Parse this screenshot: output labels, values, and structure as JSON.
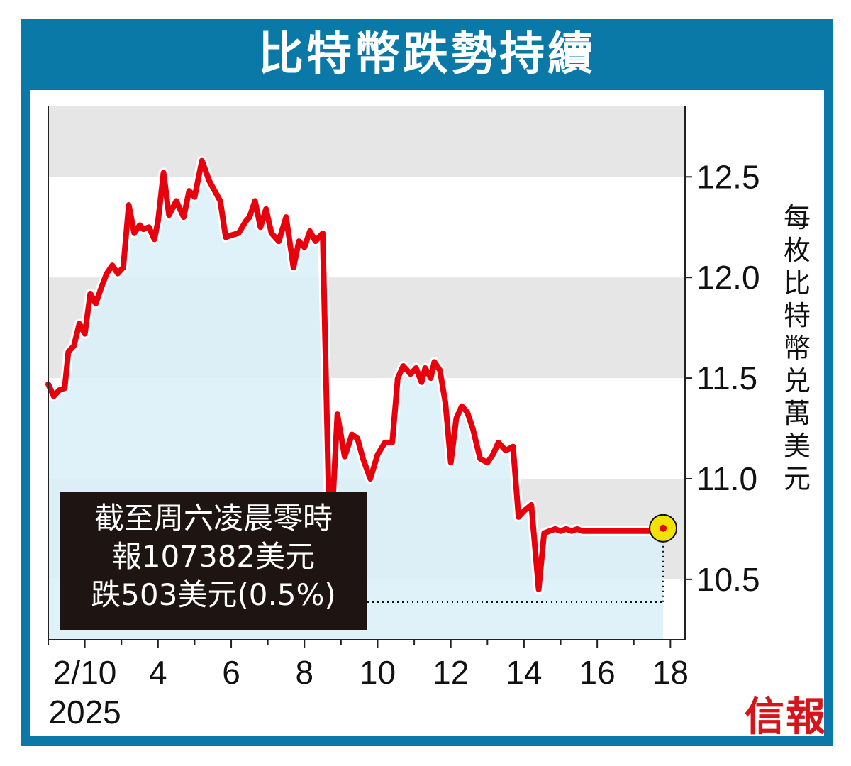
{
  "title": "比特幣跌勢持續",
  "note": {
    "line1": "截至周六凌晨零時",
    "line2": "報107382美元",
    "line3": "跌503美元(0.5%)"
  },
  "logo": "信報",
  "colors": {
    "frame": "#0a79a8",
    "line": "#e8000d",
    "area": "#d9eef8",
    "band": "#e6e6e6",
    "marker": "#f2e200"
  },
  "chart_data": {
    "type": "line",
    "title": "比特幣跌勢持續",
    "ylabel": "每枚比特幣兑萬美元",
    "xlabel": "",
    "x_ticks": [
      "2/10",
      "4",
      "6",
      "8",
      "10",
      "12",
      "14",
      "16",
      "18"
    ],
    "x_year_label": "2025",
    "x_tick_values": [
      10,
      12,
      14,
      16,
      18,
      20,
      22,
      24,
      26
    ],
    "y_ticks": [
      "10.5",
      "11.0",
      "11.5",
      "12.0",
      "12.5"
    ],
    "y_tick_values": [
      10.5,
      11.0,
      11.5,
      12.0,
      12.5
    ],
    "xlim": [
      9,
      26.4
    ],
    "ylim": [
      10.2,
      12.85
    ],
    "grid": "horizontal bands",
    "last_value_marker": true,
    "series": [
      {
        "x": [
          9.0,
          9.15,
          9.3,
          9.45,
          9.55,
          9.7,
          9.85,
          10.0,
          10.15,
          10.3,
          10.45,
          10.6,
          10.75,
          10.9,
          11.05,
          11.2,
          11.35,
          11.5,
          11.6,
          11.75,
          11.9,
          12.0,
          12.15,
          12.3,
          12.5,
          12.7,
          12.85,
          13.0,
          13.2,
          13.4,
          13.55,
          13.7,
          13.85,
          14.0,
          14.2,
          14.4,
          14.5,
          14.65,
          14.8,
          14.95,
          15.1,
          15.3,
          15.5,
          15.7,
          15.85,
          16.0,
          16.15,
          16.3,
          16.5,
          16.7,
          16.9,
          17.1,
          17.3,
          17.45,
          17.6,
          17.8,
          18.0,
          18.2,
          18.4,
          18.55,
          18.7,
          18.9,
          19.05,
          19.2,
          19.3,
          19.45,
          19.55,
          19.7,
          19.85,
          20.0,
          20.15,
          20.3,
          20.45,
          20.6,
          20.8,
          21.0,
          21.15,
          21.3,
          21.5,
          21.7,
          21.85,
          22.0,
          22.2,
          22.4,
          22.55,
          22.7,
          22.85,
          23.0,
          23.15,
          23.3,
          23.45,
          23.6,
          23.8,
          24.0,
          24.15,
          24.3,
          24.45,
          24.55,
          24.7,
          24.85,
          25.0,
          25.15,
          25.3,
          25.4,
          25.55,
          25.7,
          25.8
        ],
        "y": [
          11.47,
          11.41,
          11.44,
          11.45,
          11.63,
          11.66,
          11.77,
          11.72,
          11.92,
          11.87,
          11.95,
          12.02,
          12.06,
          12.02,
          12.05,
          12.36,
          12.22,
          12.26,
          12.24,
          12.25,
          12.19,
          12.28,
          12.52,
          12.31,
          12.38,
          12.3,
          12.43,
          12.4,
          12.58,
          12.48,
          12.43,
          12.38,
          12.2,
          12.21,
          12.22,
          12.28,
          12.3,
          12.38,
          12.25,
          12.34,
          12.22,
          12.18,
          12.3,
          12.05,
          12.18,
          12.15,
          12.23,
          12.18,
          12.22,
          10.62,
          11.32,
          11.11,
          11.22,
          11.2,
          11.1,
          11.0,
          11.12,
          11.18,
          11.18,
          11.5,
          11.56,
          11.52,
          11.55,
          11.48,
          11.55,
          11.5,
          11.58,
          11.54,
          11.38,
          11.08,
          11.3,
          11.36,
          11.33,
          11.25,
          11.1,
          11.08,
          11.12,
          11.18,
          11.14,
          11.16,
          10.81,
          10.84,
          10.87,
          10.45,
          10.73,
          10.74,
          10.75,
          10.74,
          10.75,
          10.74,
          10.75,
          10.74,
          10.74,
          10.74,
          10.74,
          10.74,
          10.74,
          10.74,
          10.74,
          10.74,
          10.74,
          10.74,
          10.74,
          10.74,
          10.74,
          10.74,
          10.74
        ]
      }
    ]
  }
}
